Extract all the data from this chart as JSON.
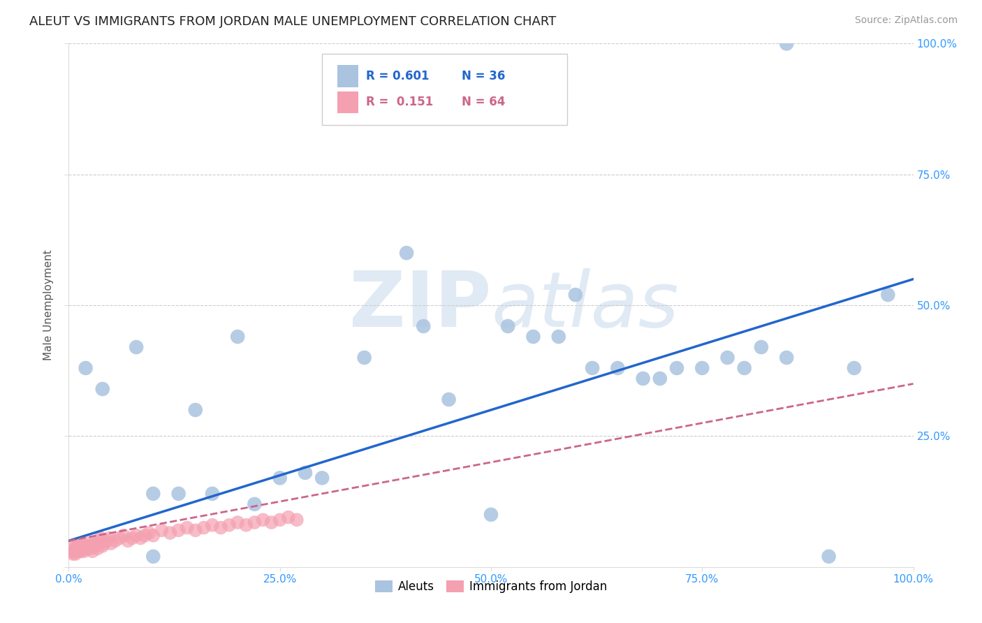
{
  "title": "ALEUT VS IMMIGRANTS FROM JORDAN MALE UNEMPLOYMENT CORRELATION CHART",
  "source": "Source: ZipAtlas.com",
  "ylabel": "Male Unemployment",
  "watermark": "ZIPatlas",
  "xlim": [
    0.0,
    1.0
  ],
  "ylim": [
    0.0,
    1.0
  ],
  "grid_color": "#cccccc",
  "aleuts_color": "#aac4e0",
  "jordan_color": "#f4a0b0",
  "trend_aleuts_color": "#2266cc",
  "trend_jordan_color": "#cc6688",
  "legend_R_aleuts": "R = 0.601",
  "legend_N_aleuts": "N = 36",
  "legend_R_jordan": "R =  0.151",
  "legend_N_jordan": "N = 64",
  "aleuts_x": [
    0.85,
    0.02,
    0.04,
    0.08,
    0.13,
    0.17,
    0.22,
    0.25,
    0.3,
    0.35,
    0.4,
    0.42,
    0.45,
    0.5,
    0.52,
    0.55,
    0.6,
    0.65,
    0.68,
    0.7,
    0.72,
    0.75,
    0.78,
    0.82,
    0.85,
    0.9,
    0.93,
    0.1,
    0.1,
    0.15,
    0.2,
    0.28,
    0.58,
    0.62,
    0.8,
    0.97
  ],
  "aleuts_y": [
    1.0,
    0.38,
    0.34,
    0.42,
    0.14,
    0.14,
    0.12,
    0.17,
    0.17,
    0.4,
    0.6,
    0.46,
    0.32,
    0.1,
    0.46,
    0.44,
    0.52,
    0.38,
    0.36,
    0.36,
    0.38,
    0.38,
    0.4,
    0.42,
    0.4,
    0.02,
    0.38,
    0.02,
    0.14,
    0.3,
    0.44,
    0.18,
    0.44,
    0.38,
    0.38,
    0.52
  ],
  "jordan_x": [
    0.003,
    0.004,
    0.005,
    0.006,
    0.007,
    0.008,
    0.009,
    0.01,
    0.011,
    0.012,
    0.013,
    0.014,
    0.015,
    0.016,
    0.017,
    0.018,
    0.019,
    0.02,
    0.021,
    0.022,
    0.023,
    0.024,
    0.025,
    0.026,
    0.027,
    0.028,
    0.029,
    0.03,
    0.032,
    0.034,
    0.035,
    0.038,
    0.04,
    0.042,
    0.045,
    0.048,
    0.05,
    0.055,
    0.06,
    0.065,
    0.07,
    0.075,
    0.08,
    0.085,
    0.09,
    0.095,
    0.1,
    0.11,
    0.12,
    0.13,
    0.14,
    0.15,
    0.16,
    0.17,
    0.18,
    0.19,
    0.2,
    0.21,
    0.22,
    0.23,
    0.24,
    0.25,
    0.26,
    0.27
  ],
  "jordan_y": [
    0.03,
    0.04,
    0.025,
    0.03,
    0.03,
    0.025,
    0.04,
    0.035,
    0.04,
    0.03,
    0.035,
    0.03,
    0.04,
    0.035,
    0.04,
    0.03,
    0.035,
    0.04,
    0.035,
    0.04,
    0.045,
    0.04,
    0.035,
    0.04,
    0.04,
    0.03,
    0.04,
    0.045,
    0.04,
    0.035,
    0.05,
    0.055,
    0.04,
    0.045,
    0.05,
    0.055,
    0.045,
    0.05,
    0.055,
    0.06,
    0.05,
    0.055,
    0.06,
    0.055,
    0.06,
    0.065,
    0.06,
    0.07,
    0.065,
    0.07,
    0.075,
    0.07,
    0.075,
    0.08,
    0.075,
    0.08,
    0.085,
    0.08,
    0.085,
    0.09,
    0.085,
    0.09,
    0.095,
    0.09
  ],
  "aleut_trend_x0": 0.0,
  "aleut_trend_y0": 0.05,
  "aleut_trend_x1": 1.0,
  "aleut_trend_y1": 0.55,
  "jordan_trend_x0": 0.0,
  "jordan_trend_y0": 0.05,
  "jordan_trend_x1": 1.0,
  "jordan_trend_y1": 0.35
}
